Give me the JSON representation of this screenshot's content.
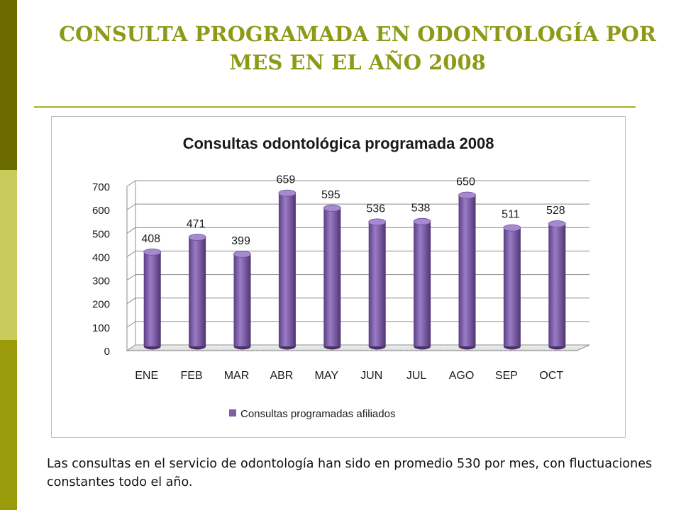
{
  "slide": {
    "title": "CONSULTA PROGRAMADA EN ODONTOLOGÍA POR MES EN EL AÑO 2008",
    "caption": "Las consultas en el servicio de odontología han sido en promedio 530 por mes, con fluctuaciones constantes todo el año."
  },
  "chart_data": {
    "type": "bar",
    "title": "Consultas odontológica programada 2008",
    "categories": [
      "ENE",
      "FEB",
      "MAR",
      "ABR",
      "MAY",
      "JUN",
      "JUL",
      "AGO",
      "SEP",
      "OCT"
    ],
    "series": [
      {
        "name": "Consultas programadas afiliados",
        "values": [
          408,
          471,
          399,
          659,
          595,
          536,
          538,
          650,
          511,
          528
        ],
        "color": "#7e5ca8"
      }
    ],
    "yticks": [
      0,
      100,
      200,
      300,
      400,
      500,
      600,
      700
    ],
    "ylim": [
      0,
      700
    ],
    "grid": true,
    "legend": "bottom",
    "data_labels": true
  }
}
